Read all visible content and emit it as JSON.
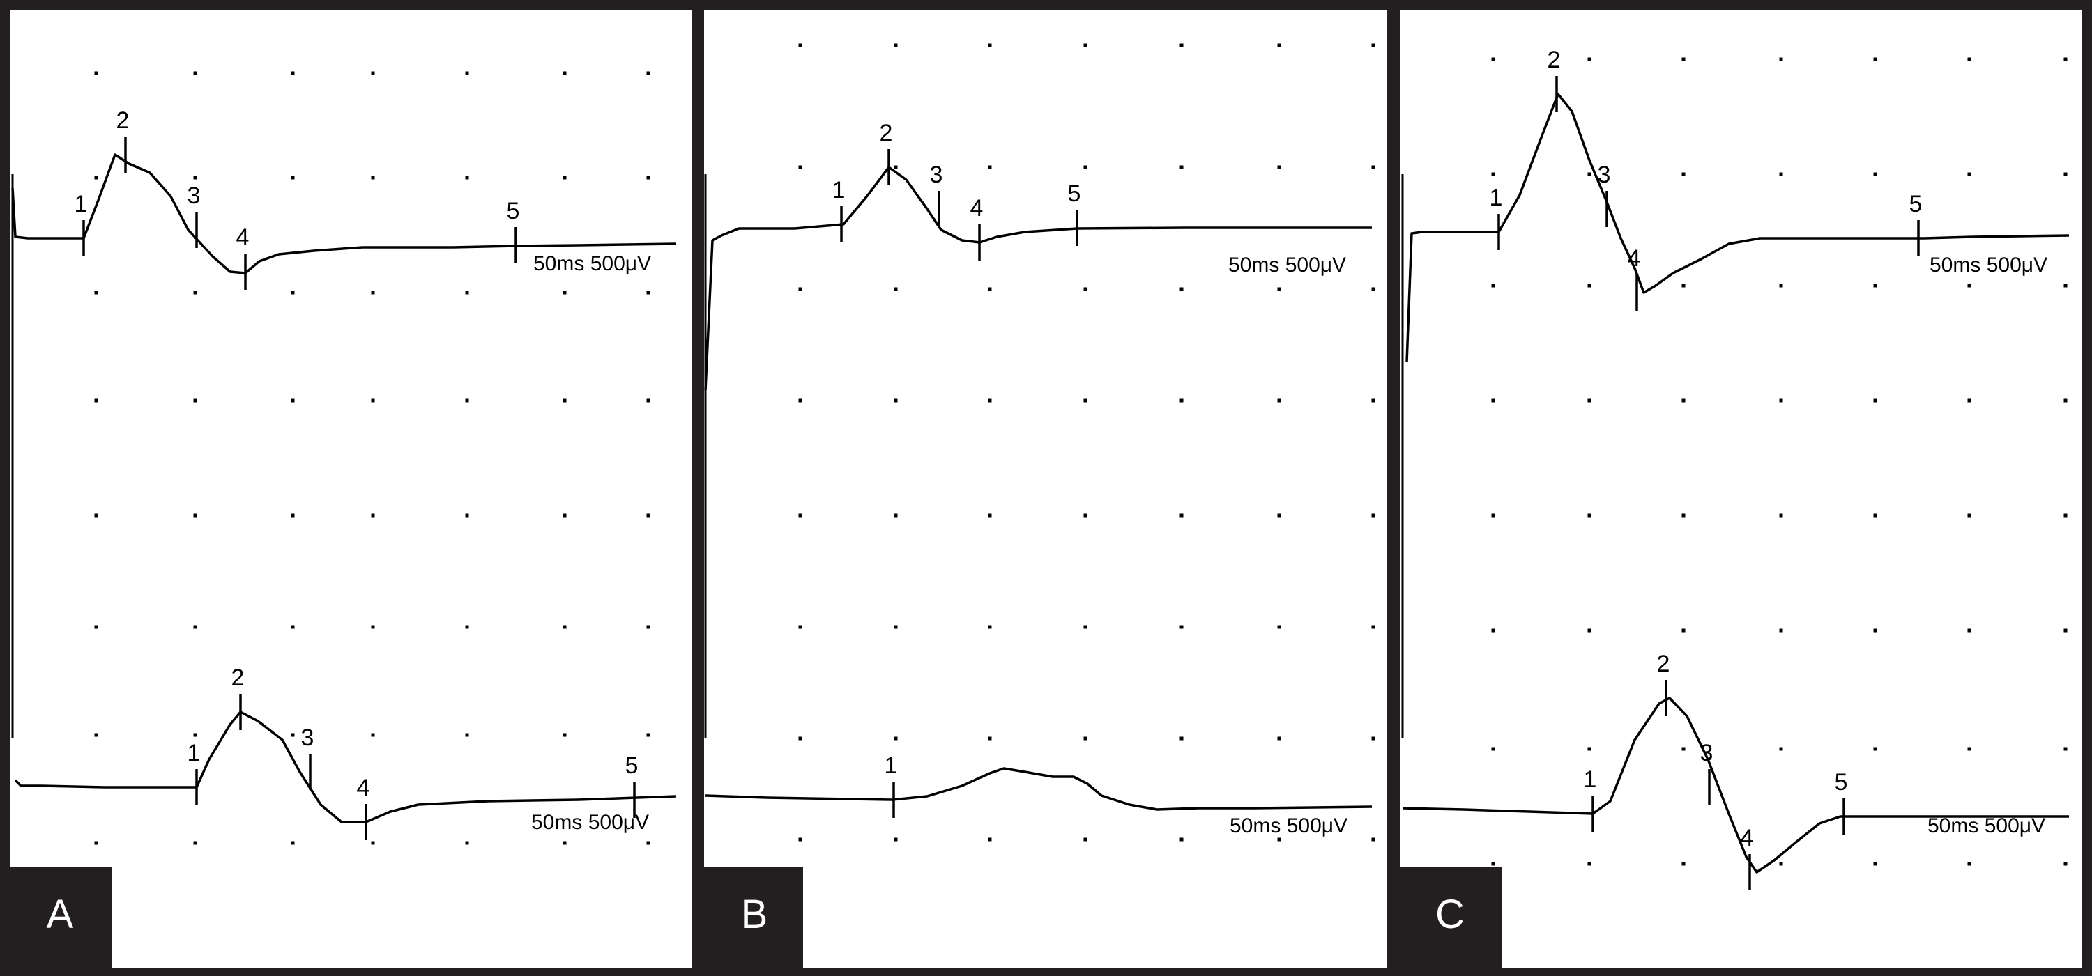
{
  "figure": {
    "background": "#231f20",
    "panel_fill": "#ffffff",
    "trace_color": "#000000",
    "label_box_color": "#231f20",
    "label_text_color": "#ffffff"
  },
  "panels": [
    {
      "letter": "A",
      "traces": [
        {
          "scale": "50ms 500μV",
          "markers": [
            "1",
            "2",
            "3",
            "4",
            "5"
          ]
        },
        {
          "scale": "50ms 500μV",
          "markers": [
            "1",
            "2",
            "3",
            "4",
            "5"
          ]
        }
      ]
    },
    {
      "letter": "B",
      "traces": [
        {
          "scale": "50ms 500μV",
          "markers": [
            "1",
            "2",
            "3",
            "4",
            "5"
          ]
        },
        {
          "scale": "50ms 500μV",
          "markers": [
            "1"
          ]
        }
      ]
    },
    {
      "letter": "C",
      "traces": [
        {
          "scale": "50ms 500μV",
          "markers": [
            "1",
            "2",
            "3",
            "4",
            "5"
          ]
        },
        {
          "scale": "50ms 500μV",
          "markers": [
            "1",
            "2",
            "3",
            "4",
            "5"
          ]
        }
      ]
    }
  ]
}
